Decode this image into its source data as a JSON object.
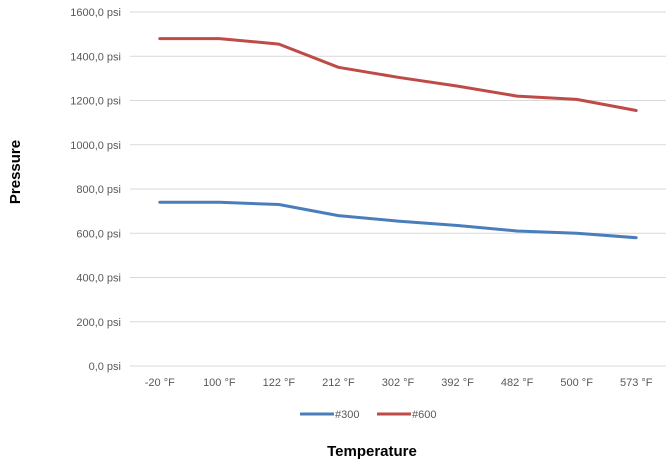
{
  "chart_data": {
    "type": "line",
    "title": "",
    "xlabel": "Temperature",
    "ylabel": "Pressure",
    "categories": [
      "-20 °F",
      "100 °F",
      "122 °F",
      "212 °F",
      "302 °F",
      "392 °F",
      "482 °F",
      "500 °F",
      "573 °F"
    ],
    "series": [
      {
        "name": "#300",
        "color": "#4a7ebb",
        "values": [
          740,
          740,
          730,
          680,
          655,
          635,
          610,
          600,
          580
        ]
      },
      {
        "name": "#600",
        "color": "#be4b48",
        "values": [
          1480,
          1480,
          1455,
          1350,
          1305,
          1265,
          1220,
          1205,
          1155
        ]
      }
    ],
    "yticks": [
      "0,0 psi",
      "200,0 psi",
      "400,0 psi",
      "600,0 psi",
      "800,0 psi",
      "1000,0 psi",
      "1200,0 psi",
      "1400,0 psi",
      "1600,0 psi"
    ],
    "ylim": [
      0,
      1600
    ],
    "grid": true,
    "legend_position": "bottom"
  }
}
